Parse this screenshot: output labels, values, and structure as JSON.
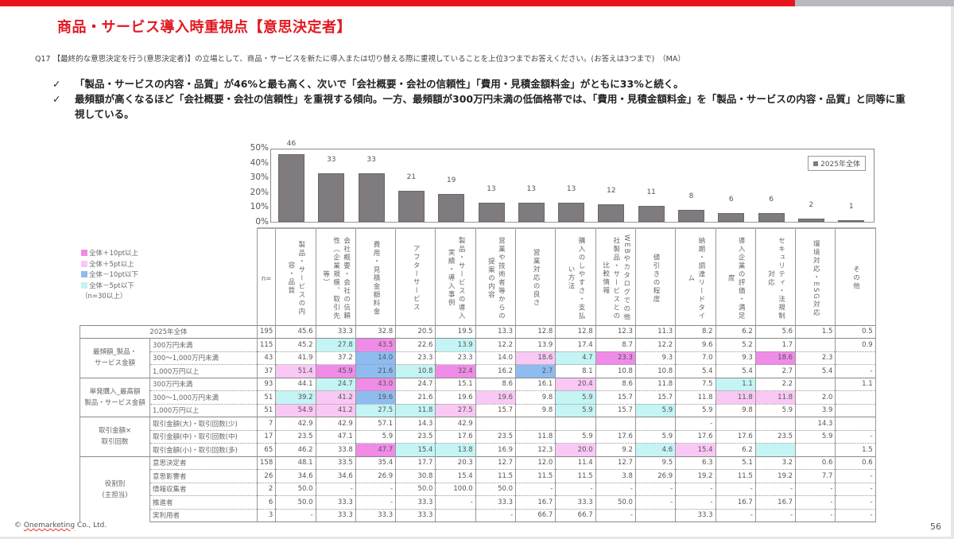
{
  "header": {
    "title": "商品・サービス導入時重視点【意思決定者】",
    "question": "Q17 【最終的な意思決定を行う(意思決定者)】の立場として、商品・サービスを新たに導入または切り替える際に重視していることを上位3つまでお答えください。(お答えは3つまで)　（MA）"
  },
  "bullets": [
    {
      "mark": "✓",
      "text": "「製品・サービスの内容・品質」が46%と最も高く、次いで「会社概要・会社の信頼性」「費用・見積金額料金」がともに33%と続く。"
    },
    {
      "mark": "✓",
      "text": "最頻額が高くなるほど「会社概要・会社の信頼性」を重視する傾向。一方、最頻額が300万円未満の低価格帯では、「費用・見積金額料金」を「製品・サービスの内容・品質」と同等に重視している。"
    }
  ],
  "colors": {
    "brand_red": "#e01a22",
    "bar": "#7f7b7e",
    "plus10": "#f08ce8",
    "plus5": "#f9c8f4",
    "minus10": "#8ebcf0",
    "minus5": "#c4f4f4"
  },
  "color_key": {
    "items": [
      {
        "label": "全体＋10pt以上",
        "cls": "c-pp"
      },
      {
        "label": "全体＋5pt以上",
        "cls": "c-p"
      },
      {
        "label": "全体－10pt以下",
        "cls": "c-bb"
      },
      {
        "label": "全体－5pt以下",
        "cls": "c-b"
      }
    ],
    "note": "（n=30以上）"
  },
  "chart_data": {
    "type": "bar",
    "title": "",
    "xlabel": "",
    "ylabel": "",
    "ylim": [
      0,
      50
    ],
    "yticks": [
      "0%",
      "10%",
      "20%",
      "30%",
      "40%",
      "50%"
    ],
    "grid": false,
    "legend_position": "top-right",
    "legend": [
      "2025年全体"
    ],
    "categories": [
      "製品・サービスの内容・品質",
      "会社概要・会社の信頼性（企業規模、取引先等）",
      "費用・見積金額料金",
      "アフターサービス",
      "製品・サービスの導入実績・導入事例",
      "営業や技術者等からの提案の内容",
      "営業対応の良さ",
      "購入のしやすさ・支払い方法",
      "WEBやカタログでの他社製品・サービスとの比較情報",
      "値引きの程度",
      "納期・調達リードタイム",
      "導入企業の評価・満足度",
      "セキュリティ・法規制対応",
      "環境対応・ESG対応",
      "その他"
    ],
    "series": [
      {
        "name": "2025年全体",
        "values": [
          46,
          33,
          33,
          21,
          19,
          13,
          13,
          13,
          12,
          11,
          8,
          6,
          6,
          2,
          1
        ]
      }
    ]
  },
  "table": {
    "n_header": "n=",
    "total": {
      "label": "2025年全体",
      "n": "195",
      "cells": [
        "45.6",
        "33.3",
        "32.8",
        "20.5",
        "19.5",
        "13.3",
        "12.8",
        "12.8",
        "12.3",
        "11.3",
        "8.2",
        "6.2",
        "5.6",
        "1.5",
        "0.5"
      ],
      "colors": [
        "",
        "",
        "",
        "",
        "",
        "",
        "",
        "",
        "",
        "",
        "",
        "",
        "",
        "",
        ""
      ]
    },
    "groups": [
      {
        "label": "最頻額_製品・\nサービス金額",
        "rows": [
          {
            "label": "300万円未満",
            "n": "115",
            "cells": [
              "45.2",
              "27.8",
              "43.5",
              "22.6",
              "13.9",
              "12.2",
              "13.9",
              "17.4",
              "8.7",
              "12.2",
              "9.6",
              "5.2",
              "1.7",
              "",
              "0.9"
            ],
            "colors": [
              "",
              "c-b",
              "c-pp",
              "",
              "c-b",
              "",
              "",
              "",
              "",
              "",
              "",
              "",
              "",
              "",
              ""
            ]
          },
          {
            "label": "300～1,000万円未満",
            "n": "43",
            "cells": [
              "41.9",
              "37.2",
              "14.0",
              "23.3",
              "23.3",
              "14.0",
              "18.6",
              "4.7",
              "23.3",
              "9.3",
              "7.0",
              "9.3",
              "18.6",
              "2.3",
              ""
            ],
            "colors": [
              "",
              "",
              "c-bb",
              "",
              "",
              "",
              "c-p",
              "c-b",
              "c-pp",
              "",
              "",
              "",
              "c-pp",
              "",
              ""
            ]
          },
          {
            "label": "1,000万円以上",
            "n": "37",
            "cells": [
              "51.4",
              "45.9",
              "21.6",
              "10.8",
              "32.4",
              "16.2",
              "2.7",
              "8.1",
              "10.8",
              "10.8",
              "5.4",
              "5.4",
              "2.7",
              "5.4",
              "-"
            ],
            "colors": [
              "c-p",
              "c-pp",
              "c-bb",
              "c-b",
              "c-pp",
              "",
              "c-bb",
              "",
              "",
              "",
              "",
              "",
              "",
              "",
              ""
            ]
          }
        ]
      },
      {
        "label": "単発購入_最高額\n製品・サービス金額",
        "rows": [
          {
            "label": "300万円未満",
            "n": "93",
            "cells": [
              "44.1",
              "24.7",
              "43.0",
              "24.7",
              "15.1",
              "8.6",
              "16.1",
              "20.4",
              "8.6",
              "11.8",
              "7.5",
              "1.1",
              "2.2",
              "",
              "1.1"
            ],
            "colors": [
              "",
              "c-b",
              "c-pp",
              "",
              "",
              "",
              "",
              "c-p",
              "",
              "",
              "",
              "c-b",
              "",
              "",
              ""
            ]
          },
          {
            "label": "300～1,000万円未満",
            "n": "51",
            "cells": [
              "39.2",
              "41.2",
              "19.6",
              "21.6",
              "19.6",
              "19.6",
              "9.8",
              "5.9",
              "15.7",
              "15.7",
              "11.8",
              "11.8",
              "11.8",
              "2.0",
              ""
            ],
            "colors": [
              "c-b",
              "c-p",
              "c-bb",
              "",
              "",
              "c-p",
              "",
              "c-b",
              "",
              "",
              "",
              "c-p",
              "c-p",
              "",
              ""
            ]
          },
          {
            "label": "1,000万円以上",
            "n": "51",
            "cells": [
              "54.9",
              "41.2",
              "27.5",
              "11.8",
              "27.5",
              "15.7",
              "9.8",
              "5.9",
              "15.7",
              "5.9",
              "5.9",
              "9.8",
              "5.9",
              "3.9",
              ""
            ],
            "colors": [
              "c-p",
              "c-p",
              "c-b",
              "c-b",
              "c-p",
              "",
              "",
              "c-b",
              "",
              "c-b",
              "",
              "",
              "",
              "",
              ""
            ]
          }
        ]
      },
      {
        "label": "取引金額×\n取引回数",
        "rows": [
          {
            "label": "取引金額(大)・取引回数(少)",
            "n": "7",
            "cells": [
              "42.9",
              "42.9",
              "57.1",
              "14.3",
              "42.9",
              "",
              "",
              "",
              "",
              "",
              "-",
              "",
              "",
              "14.3",
              ""
            ],
            "colors": [
              "",
              "",
              "",
              "",
              "",
              "",
              "",
              "",
              "",
              "",
              "",
              "",
              "",
              "",
              ""
            ]
          },
          {
            "label": "取引金額(中)・取引回数(中)",
            "n": "17",
            "cells": [
              "23.5",
              "47.1",
              "5.9",
              "23.5",
              "17.6",
              "23.5",
              "11.8",
              "5.9",
              "17.6",
              "5.9",
              "17.6",
              "17.6",
              "23.5",
              "5.9",
              "-"
            ],
            "colors": [
              "",
              "",
              "",
              "",
              "",
              "",
              "",
              "",
              "",
              "",
              "",
              "",
              "",
              "",
              ""
            ]
          },
          {
            "label": "取引金額(小)・取引回数(多)",
            "n": "65",
            "cells": [
              "46.2",
              "33.8",
              "47.7",
              "15.4",
              "13.8",
              "16.9",
              "12.3",
              "20.0",
              "9.2",
              "4.6",
              "15.4",
              "6.2",
              "",
              "",
              "1.5"
            ],
            "colors": [
              "",
              "",
              "c-pp",
              "c-b",
              "c-b",
              "",
              "",
              "c-p",
              "",
              "c-b",
              "c-p",
              "",
              "c-b",
              "",
              ""
            ]
          }
        ]
      },
      {
        "label": "役割別\n(主担当)",
        "rows": [
          {
            "label": "意思決定者",
            "n": "158",
            "cells": [
              "48.1",
              "33.5",
              "35.4",
              "17.7",
              "20.3",
              "12.7",
              "12.0",
              "11.4",
              "12.7",
              "9.5",
              "6.3",
              "5.1",
              "3.2",
              "0.6",
              "0.6"
            ],
            "colors": [
              "",
              "",
              "",
              "",
              "",
              "",
              "",
              "",
              "",
              "",
              "",
              "",
              "",
              "",
              ""
            ]
          },
          {
            "label": "意思影響者",
            "n": "26",
            "cells": [
              "34.6",
              "34.6",
              "26.9",
              "30.8",
              "15.4",
              "11.5",
              "11.5",
              "11.5",
              "3.8",
              "26.9",
              "19.2",
              "11.5",
              "19.2",
              "7.7",
              "-"
            ],
            "colors": [
              "",
              "",
              "",
              "",
              "",
              "",
              "",
              "",
              "",
              "",
              "",
              "",
              "",
              "",
              ""
            ]
          },
          {
            "label": "情報収集者",
            "n": "2",
            "cells": [
              "50.0",
              "-",
              "-",
              "50.0",
              "100.0",
              "50.0",
              "-",
              "-",
              "-",
              "-",
              "-",
              "-",
              "-",
              "-",
              "-"
            ],
            "colors": [
              "",
              "",
              "",
              "",
              "",
              "",
              "",
              "",
              "",
              "",
              "",
              "",
              "",
              "",
              ""
            ]
          },
          {
            "label": "推進者",
            "n": "6",
            "cells": [
              "50.0",
              "33.3",
              "-",
              "33.3",
              "-",
              "33.3",
              "16.7",
              "33.3",
              "50.0",
              "-",
              "-",
              "16.7",
              "16.7",
              "-",
              "-"
            ],
            "colors": [
              "",
              "",
              "",
              "",
              "",
              "",
              "",
              "",
              "",
              "",
              "",
              "",
              "",
              "",
              ""
            ]
          },
          {
            "label": "実利用者",
            "n": "3",
            "cells": [
              "-",
              "33.3",
              "33.3",
              "33.3",
              "",
              "-",
              "66.7",
              "66.7",
              "-",
              "",
              "33.3",
              "-",
              "-",
              "-",
              "-"
            ],
            "colors": [
              "",
              "",
              "",
              "",
              "",
              "",
              "",
              "",
              "",
              "",
              "",
              "",
              "",
              "",
              ""
            ]
          }
        ]
      }
    ]
  },
  "footer": {
    "copyright_symbol": "©",
    "company": "Onemarketing",
    "suffix": " Co., Ltd.",
    "page": "56"
  }
}
